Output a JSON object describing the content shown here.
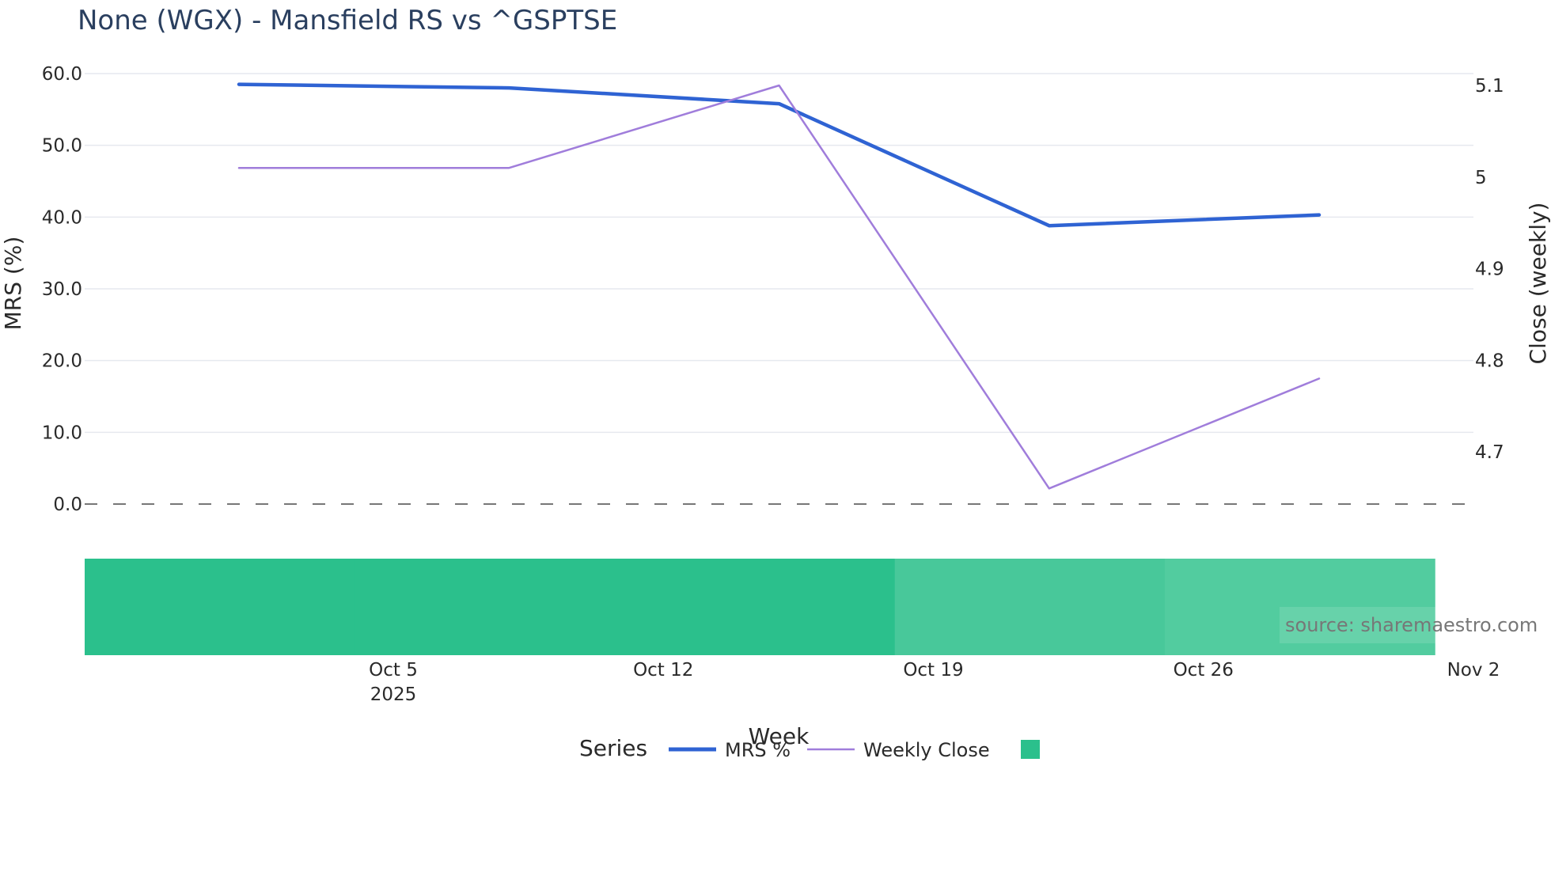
{
  "colors": {
    "mrs_line": "#2f63d3",
    "close_line": "#a07ddb",
    "grid": "#e6e9ef",
    "zero_line": "#777777",
    "heat_strong": "#2bc08c",
    "heat_medium": "#48c89a",
    "heat_light": "#52cc9f",
    "background": "#ffffff"
  },
  "chart_data": {
    "type": "line",
    "title": "None (WGX) - Mansfield RS vs ^GSPTSE",
    "xlabel": "Week",
    "ylabel": "MRS (%)",
    "y2label": "Close (weekly)",
    "ylim": [
      0,
      60
    ],
    "y2lim": [
      4.643,
      5.113
    ],
    "xlim": [
      "2025-09-27",
      "2025-11-02"
    ],
    "y_ticks": [
      "0.0",
      "10.0",
      "20.0",
      "30.0",
      "40.0",
      "50.0",
      "60.0"
    ],
    "y2_ticks": [
      "4.7",
      "4.8",
      "4.9",
      "5",
      "5.1"
    ],
    "x_ticks": [
      {
        "date": "2025-10-05",
        "label": "Oct 5",
        "sublabel": "2025"
      },
      {
        "date": "2025-10-12",
        "label": "Oct 12",
        "sublabel": ""
      },
      {
        "date": "2025-10-19",
        "label": "Oct 19",
        "sublabel": ""
      },
      {
        "date": "2025-10-26",
        "label": "Oct 26",
        "sublabel": ""
      },
      {
        "date": "2025-11-02",
        "label": "Nov 2",
        "sublabel": ""
      }
    ],
    "dates": [
      "2025-10-01",
      "2025-10-08",
      "2025-10-15",
      "2025-10-22",
      "2025-10-29"
    ],
    "series": [
      {
        "name": "MRS %",
        "axis": "left",
        "values": [
          58.5,
          58.0,
          55.8,
          38.8,
          40.3
        ]
      },
      {
        "name": "Weekly Close",
        "axis": "right",
        "values": [
          5.01,
          5.01,
          5.1,
          4.66,
          4.78
        ]
      }
    ],
    "heat_strip": {
      "date_edges": [
        "2025-09-27",
        "2025-10-04",
        "2025-10-11",
        "2025-10-18",
        "2025-10-25",
        "2025-11-01"
      ],
      "levels": [
        "strong",
        "strong",
        "strong",
        "medium",
        "light"
      ]
    },
    "legend": {
      "title": "Series",
      "entries": [
        "MRS %",
        "Weekly Close",
        ""
      ],
      "position": "bottom-center"
    },
    "annotation": "source: sharemaestro.com"
  }
}
